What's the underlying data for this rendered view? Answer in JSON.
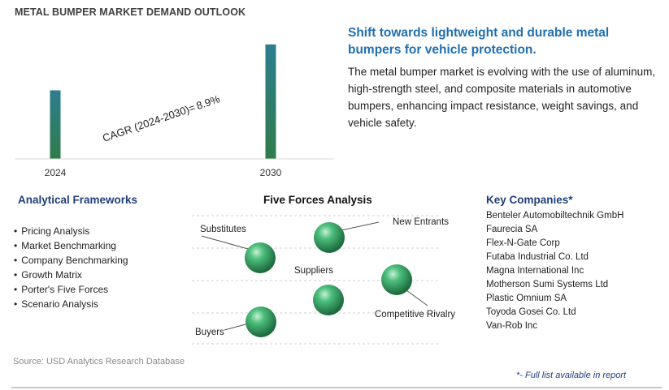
{
  "chart_data": {
    "type": "bar",
    "title": "METAL BUMPER MARKET DEMAND OUTLOOK",
    "categories": [
      "2024",
      "2030"
    ],
    "values": [
      1.0,
      1.67
    ],
    "ylim": [
      0,
      1.75
    ],
    "grid": false,
    "annotation": {
      "label": "CAGR (2024-2030)=",
      "value": "8.9%"
    },
    "bar_color_top": "#2e7d8f",
    "bar_color_bottom": "#2f7d4a"
  },
  "headline": "Shift towards lightweight and durable metal bumpers for vehicle protection.",
  "description": "The metal bumper market is evolving with the use of aluminum, high-strength steel, and composite materials in automotive bumpers, enhancing impact resistance, weight savings, and vehicle safety.",
  "frameworks": {
    "title": "Analytical Frameworks",
    "items": [
      "Pricing Analysis",
      "Market Benchmarking",
      "Company Benchmarking",
      "Growth Matrix",
      "Porter's Five Forces",
      "Scenario Analysis"
    ]
  },
  "five_forces": {
    "title": "Five Forces Analysis",
    "labels": {
      "substitutes": "Substitutes",
      "new_entrants": "New Entrants",
      "suppliers": "Suppliers",
      "competitive_rivalry": "Competitive Rivalry",
      "buyers": "Buyers"
    },
    "sphere_color": "#2e9e5e"
  },
  "companies": {
    "title": "Key Companies*",
    "items": [
      "Benteler Automobiltechnik GmbH",
      "Faurecia SA",
      "Flex-N-Gate Corp",
      "Futaba Industrial Co. Ltd",
      "Magna International Inc",
      "Motherson Sumi Systems Ltd",
      "Plastic Omnium SA",
      "Toyoda Gosei Co. Ltd",
      "Van-Rob Inc"
    ]
  },
  "source": "Source: USD Analytics Research Database",
  "footnote": "*- Full list available in report"
}
